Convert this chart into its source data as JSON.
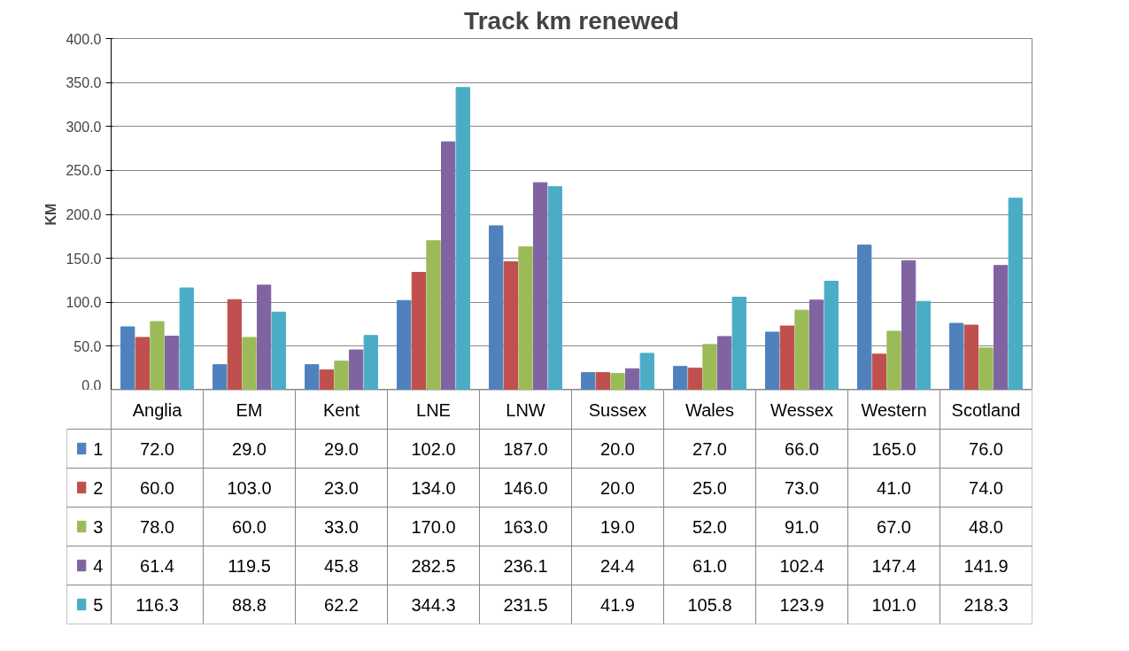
{
  "chart_data": {
    "type": "bar",
    "title": "Track km renewed",
    "ylabel": "KM",
    "categories": [
      "Anglia",
      "EM",
      "Kent",
      "LNE",
      "LNW",
      "Sussex",
      "Wales",
      "Wessex",
      "Western",
      "Scotland"
    ],
    "series": [
      {
        "name": "1",
        "color": "#4f81bd",
        "values": [
          72.0,
          29.0,
          29.0,
          102.0,
          187.0,
          20.0,
          27.0,
          66.0,
          165.0,
          76.0
        ],
        "value_labels": [
          "72.0",
          "29.0",
          "29.0",
          "102.0",
          "187.0",
          "20.0",
          "27.0",
          "66.0",
          "165.0",
          "76.0"
        ]
      },
      {
        "name": "2",
        "color": "#c0504d",
        "values": [
          60.0,
          103.0,
          23.0,
          134.0,
          146.0,
          20.0,
          25.0,
          73.0,
          41.0,
          74.0
        ],
        "value_labels": [
          "60.0",
          "103.0",
          "23.0",
          "134.0",
          "146.0",
          "20.0",
          "25.0",
          "73.0",
          "41.0",
          "74.0"
        ]
      },
      {
        "name": "3",
        "color": "#9bbb59",
        "values": [
          78.0,
          60.0,
          33.0,
          170.0,
          163.0,
          19.0,
          52.0,
          91.0,
          67.0,
          48.0
        ],
        "value_labels": [
          "78.0",
          "60.0",
          "33.0",
          "170.0",
          "163.0",
          "19.0",
          "52.0",
          "91.0",
          "67.0",
          "48.0"
        ]
      },
      {
        "name": "4",
        "color": "#8064a2",
        "values": [
          61.4,
          119.5,
          45.8,
          282.5,
          236.1,
          24.4,
          61.0,
          102.4,
          147.4,
          141.9
        ],
        "value_labels": [
          "61.4",
          "119.5",
          "45.8",
          "282.5",
          "236.1",
          "24.4",
          "61.0",
          "102.4",
          "147.4",
          "141.9"
        ]
      },
      {
        "name": "5",
        "color": "#4bacc6",
        "values": [
          116.3,
          88.8,
          62.2,
          344.3,
          231.5,
          41.9,
          105.8,
          123.9,
          101.0,
          218.3
        ],
        "value_labels": [
          "116.3",
          "88.8",
          "62.2",
          "344.3",
          "231.5",
          "41.9",
          "105.8",
          "123.9",
          "101.0",
          "218.3"
        ]
      }
    ],
    "ylim": [
      0,
      400
    ],
    "yticks": [
      {
        "value": 0,
        "label": "0.0"
      },
      {
        "value": 50,
        "label": "50.0"
      },
      {
        "value": 100,
        "label": "100.0"
      },
      {
        "value": 150,
        "label": "150.0"
      },
      {
        "value": 200,
        "label": "200.0"
      },
      {
        "value": 250,
        "label": "250.0"
      },
      {
        "value": 300,
        "label": "300.0"
      },
      {
        "value": 350,
        "label": "350.0"
      },
      {
        "value": 400,
        "label": "400.0"
      }
    ],
    "grid": "y",
    "legend": "bottom"
  }
}
